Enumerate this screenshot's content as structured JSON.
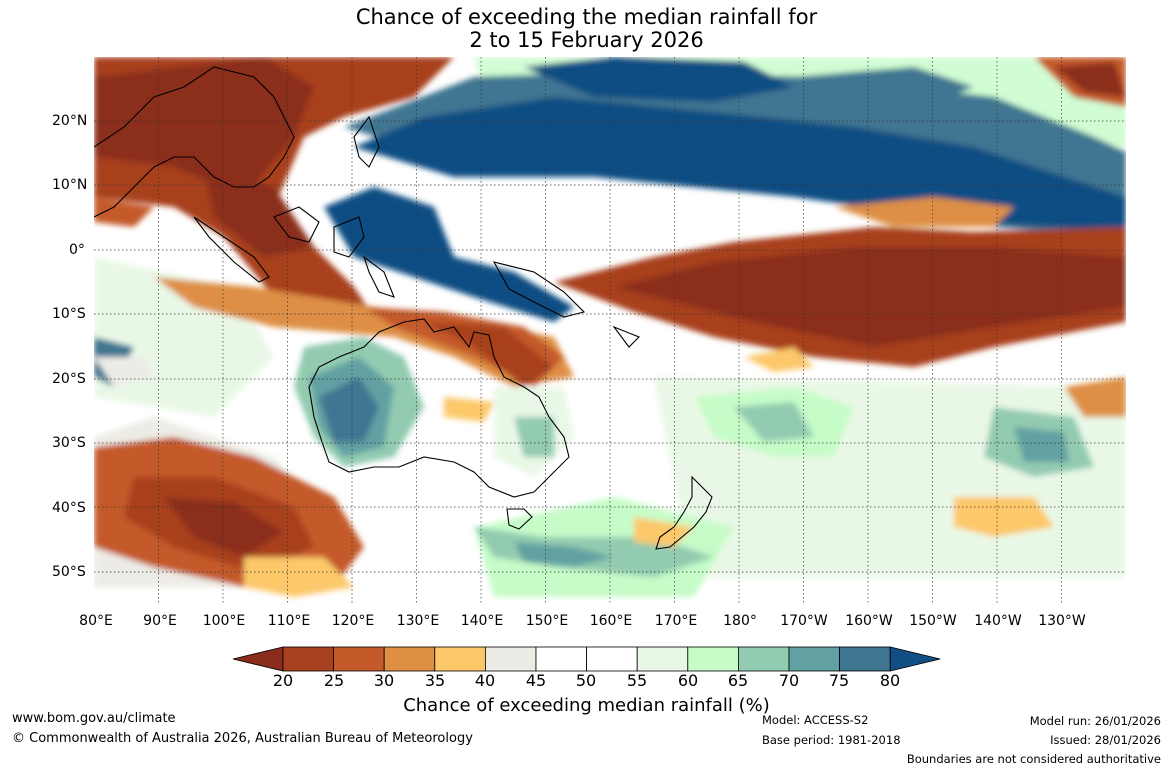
{
  "title": {
    "line1": "Chance of exceeding the median rainfall for",
    "line2": "2 to 15 February 2026"
  },
  "map": {
    "lon_labels": [
      "80°E",
      "90°E",
      "100°E",
      "110°E",
      "120°E",
      "130°E",
      "140°E",
      "150°E",
      "160°E",
      "170°E",
      "180°",
      "170°W",
      "160°W",
      "150°W",
      "140°W",
      "130°W"
    ],
    "lat_labels": [
      "20°N",
      "10°N",
      "0°",
      "10°S",
      "20°S",
      "30°S",
      "40°S",
      "50°S"
    ],
    "lon_range_degE": [
      80,
      240
    ],
    "lat_range_deg": [
      30,
      -55
    ]
  },
  "colorbar": {
    "title": "Chance of exceeding median rainfall (%)",
    "ticks": [
      "20",
      "25",
      "30",
      "35",
      "40",
      "45",
      "50",
      "55",
      "60",
      "65",
      "70",
      "75",
      "80"
    ],
    "colors": [
      "#8b2d1c",
      "#a8411f",
      "#c45a2a",
      "#de8f44",
      "#fcc86a",
      "#edebe5",
      "#ffffff",
      "#ffffff",
      "#e9f8e6",
      "#c6fcc8",
      "#93cbb0",
      "#62a1a3",
      "#3f7691",
      "#114e83"
    ]
  },
  "footer": {
    "website": "www.bom.gov.au/climate",
    "copyright": "© Commonwealth of Australia 2026, Australian Bureau of Meteorology",
    "model": "Model: ACCESS-S2",
    "base_period": "Base period: 1981-2018",
    "model_run": "Model run: 26/01/2026",
    "issued": "Issued: 28/01/2026",
    "boundaries": "Boundaries are not considered authoritative"
  }
}
